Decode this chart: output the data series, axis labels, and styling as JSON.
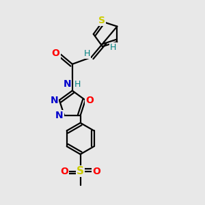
{
  "bg_color": "#e8e8e8",
  "bond_width": 1.6,
  "atom_colors": {
    "S_thiophene": "#cccc00",
    "S_sulfonyl": "#cccc00",
    "O": "#ff0000",
    "N": "#0000cc",
    "NH": "#008080",
    "H": "#008080"
  },
  "figsize": [
    3.0,
    3.0
  ],
  "dpi": 100,
  "xlim": [
    0.0,
    1.0
  ],
  "ylim": [
    0.0,
    1.0
  ]
}
